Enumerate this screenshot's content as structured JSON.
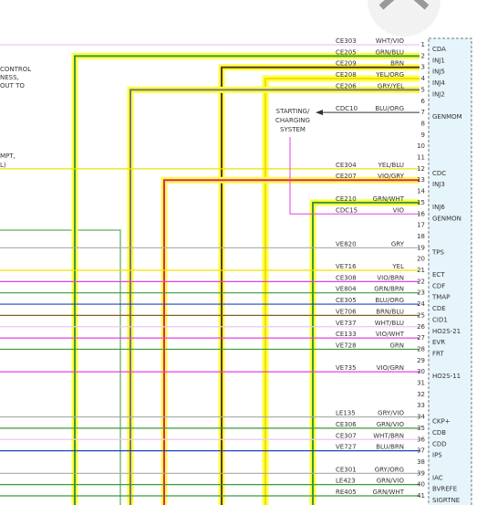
{
  "left_notes": [
    "CONTROL",
    "NESS,",
    "OUT TO",
    "MPT,",
    "L)"
  ],
  "system_label": [
    "STARTING/",
    "CHARGING",
    "SYSTEM"
  ],
  "pins": [
    {
      "number": 1,
      "circuit": "CE303",
      "color": "WHT/VIO",
      "label": "CDA"
    },
    {
      "number": 2,
      "circuit": "CE205",
      "color": "GRN/BLU",
      "label": "INJ1"
    },
    {
      "number": 3,
      "circuit": "CE209",
      "color": "BRN",
      "label": "INJ5"
    },
    {
      "number": 4,
      "circuit": "CE208",
      "color": "YEL/ORG",
      "label": "INJ4"
    },
    {
      "number": 5,
      "circuit": "CE206",
      "color": "GRY/YEL",
      "label": "INJ2"
    },
    {
      "number": 6
    },
    {
      "number": 7,
      "circuit": "CDC10",
      "color": "BLU/ORG",
      "label": "GENMOM"
    },
    {
      "number": 8
    },
    {
      "number": 9
    },
    {
      "number": 10
    },
    {
      "number": 11
    },
    {
      "number": 12,
      "circuit": "CE304",
      "color": "YEL/BLU",
      "label": "CDC"
    },
    {
      "number": 13,
      "circuit": "CE207",
      "color": "VIO/GRY",
      "label": "INJ3"
    },
    {
      "number": 14
    },
    {
      "number": 15,
      "circuit": "CE210",
      "color": "GRN/WHT",
      "label": "INJ6"
    },
    {
      "number": 16,
      "circuit": "CDC15",
      "color": "VIO",
      "label": "GENMON"
    },
    {
      "number": 17
    },
    {
      "number": 18
    },
    {
      "number": 19,
      "circuit": "VE820",
      "color": "GRY",
      "label": "TPS"
    },
    {
      "number": 20
    },
    {
      "number": 21,
      "circuit": "VE716",
      "color": "YEL",
      "label": "ECT"
    },
    {
      "number": 22,
      "circuit": "CE308",
      "color": "VIO/BRN",
      "label": "CDF"
    },
    {
      "number": 23,
      "circuit": "VE804",
      "color": "GRN/BRN",
      "label": "TMAP"
    },
    {
      "number": 24,
      "circuit": "CE305",
      "color": "BLU/ORG",
      "label": "CDE"
    },
    {
      "number": 25,
      "circuit": "VE706",
      "color": "BRN/BLU",
      "label": "CID1"
    },
    {
      "number": 26,
      "circuit": "VE737",
      "color": "WHT/BLU",
      "label": "HO2S-21"
    },
    {
      "number": 27,
      "circuit": "CE133",
      "color": "VIO/WHT",
      "label": "EVR"
    },
    {
      "number": 28,
      "circuit": "VE728",
      "color": "GRN",
      "label": "FRT"
    },
    {
      "number": 29
    },
    {
      "number": 30,
      "circuit": "VE735",
      "color": "VIO/GRN",
      "label": "HO2S-11"
    },
    {
      "number": 31
    },
    {
      "number": 32
    },
    {
      "number": 33
    },
    {
      "number": 34,
      "circuit": "LE135",
      "color": "GRY/VIO",
      "label": "CKP+"
    },
    {
      "number": 35,
      "circuit": "CE306",
      "color": "GRN/VIO",
      "label": "CDB"
    },
    {
      "number": 36,
      "circuit": "CE307",
      "color": "WHT/BRN",
      "label": "CDD"
    },
    {
      "number": 37,
      "circuit": "VE727",
      "color": "BLU/BRN",
      "label": "IPS"
    },
    {
      "number": 38
    },
    {
      "number": 39,
      "circuit": "CE301",
      "color": "GRY/ORG",
      "label": "IAC"
    },
    {
      "number": 40,
      "circuit": "LE423",
      "color": "GRN/VIO",
      "label": "BVREFE"
    },
    {
      "number": 41,
      "circuit": "RE405",
      "color": "GRN/WHT",
      "label": "SIGRTNE"
    }
  ]
}
